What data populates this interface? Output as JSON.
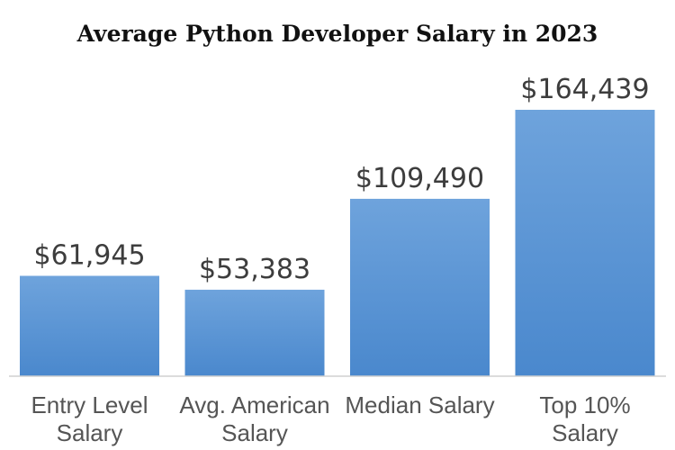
{
  "chart_data": {
    "type": "bar",
    "title": "Average Python Developer Salary in 2023",
    "categories": [
      [
        "Entry Level",
        "Salary"
      ],
      [
        "Avg. American",
        "Salary"
      ],
      [
        "Median Salary"
      ],
      [
        "Top 10%",
        "Salary"
      ]
    ],
    "values": [
      61945,
      53383,
      109490,
      164439
    ],
    "value_labels": [
      "$61,945",
      "$53,383",
      "$109,490",
      "$164,439"
    ],
    "xlabel": "",
    "ylabel": "",
    "ylim": [
      0,
      180000
    ],
    "grid": false,
    "legend": "none",
    "colors": {
      "bar_top": "#6ea3dc",
      "bar_bottom": "#4a88cd",
      "axis": "#d0d0d0"
    }
  }
}
